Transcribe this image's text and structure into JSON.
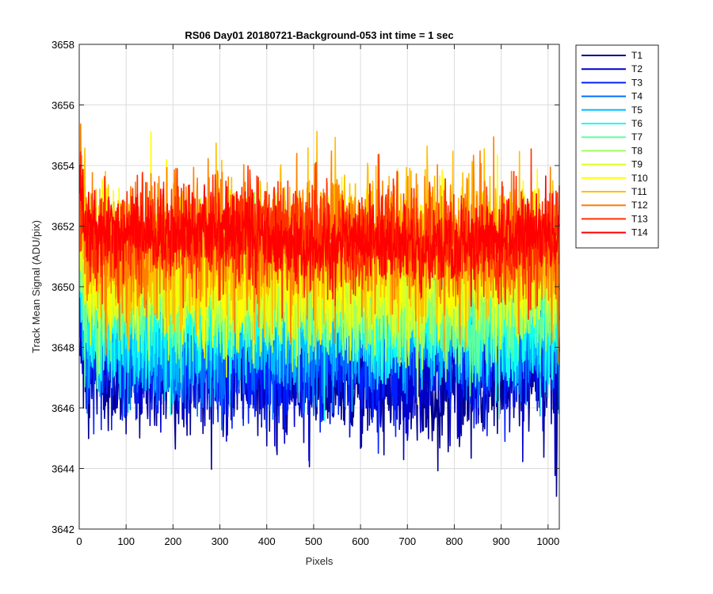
{
  "chart_data": {
    "type": "line",
    "title": "RS06 Day01 20180721-Background-053 int time = 1 sec",
    "xlabel": "Pixels",
    "ylabel": "Track Mean Signal (ADU/pix)",
    "xlim": [
      0,
      1024
    ],
    "ylim": [
      3642,
      3658
    ],
    "x_ticks": [
      "0",
      "100",
      "200",
      "300",
      "400",
      "500",
      "600",
      "700",
      "800",
      "900",
      "1000"
    ],
    "y_ticks": [
      "3642",
      "3644",
      "3646",
      "3648",
      "3650",
      "3652",
      "3654",
      "3656",
      "3658"
    ],
    "grid": true,
    "legend_position": "outside-top-right",
    "x_range": [
      1,
      1024
    ],
    "series": [
      {
        "name": "T1",
        "color": "#00008f",
        "mean": 3647.1,
        "noise": 1.0
      },
      {
        "name": "T2",
        "color": "#0000cf",
        "mean": 3647.4,
        "noise": 1.0
      },
      {
        "name": "T3",
        "color": "#0020ff",
        "mean": 3647.8,
        "noise": 1.0
      },
      {
        "name": "T4",
        "color": "#0070ff",
        "mean": 3648.2,
        "noise": 1.0
      },
      {
        "name": "T5",
        "color": "#00bfff",
        "mean": 3648.6,
        "noise": 1.0
      },
      {
        "name": "T6",
        "color": "#10ffef",
        "mean": 3649.0,
        "noise": 1.0
      },
      {
        "name": "T7",
        "color": "#60ff9f",
        "mean": 3649.4,
        "noise": 1.0
      },
      {
        "name": "T8",
        "color": "#9fff60",
        "mean": 3649.8,
        "noise": 1.0
      },
      {
        "name": "T9",
        "color": "#dfff20",
        "mean": 3650.3,
        "noise": 1.1
      },
      {
        "name": "T10",
        "color": "#ffff00",
        "mean": 3650.8,
        "noise": 1.1
      },
      {
        "name": "T11",
        "color": "#ffbf00",
        "mean": 3651.3,
        "noise": 1.2
      },
      {
        "name": "T12",
        "color": "#ff8000",
        "mean": 3651.5,
        "noise": 1.1
      },
      {
        "name": "T13",
        "color": "#ff3000",
        "mean": 3651.6,
        "noise": 0.9
      },
      {
        "name": "T14",
        "color": "#ff0000",
        "mean": 3651.6,
        "noise": 0.6
      }
    ]
  }
}
